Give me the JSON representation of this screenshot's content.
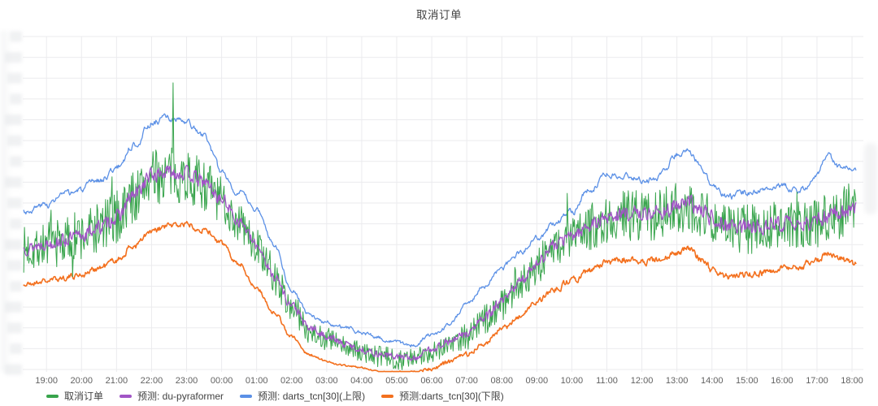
{
  "header": {
    "title": "取消订单"
  },
  "chart_data": {
    "type": "line",
    "title": "取消订单",
    "grid": true,
    "legend_position": "bottom-left",
    "x_axis": {
      "tick_labels": [
        "19:00",
        "20:00",
        "21:00",
        "22:00",
        "23:00",
        "00:00",
        "01:00",
        "02:00",
        "03:00",
        "04:00",
        "05:00",
        "06:00",
        "07:00",
        "08:00",
        "09:00",
        "10:00",
        "11:00",
        "12:00",
        "13:00",
        "14:00",
        "15:00",
        "16:00",
        "17:00",
        "18:00"
      ],
      "unit": "time of day (hourly ticks, 19:00 through next-day 18:00)",
      "data_range_hour_decimal": [
        18.35,
        42.11
      ]
    },
    "y_axis": {
      "redacted": true,
      "note": "y tick labels are blurred out in the source screenshot",
      "value_range": [
        0,
        100
      ],
      "redacted_label_rows": 17
    },
    "series": [
      {
        "name": "预测: darts_tcn[30](上限)",
        "color": "#5b90e6",
        "width": 1.3,
        "seed": 3,
        "smooth": 0.72,
        "noise_gain": 2.2,
        "noise_amp": [
          [
            18.35,
            1.1
          ],
          [
            22,
            1.3
          ],
          [
            27,
            0.8
          ],
          [
            30,
            0.8
          ],
          [
            35,
            1.2
          ],
          [
            42.11,
            1.2
          ]
        ],
        "keyframes": [
          [
            18.35,
            47.5
          ],
          [
            19,
            49.5
          ],
          [
            19.5,
            52.4
          ],
          [
            20,
            53.9
          ],
          [
            20.5,
            56.8
          ],
          [
            21,
            60.5
          ],
          [
            21.5,
            67.6
          ],
          [
            22,
            73.9
          ],
          [
            22.3,
            75.4
          ],
          [
            22.7,
            74.9
          ],
          [
            23,
            73.9
          ],
          [
            23.5,
            70
          ],
          [
            24,
            59.3
          ],
          [
            24.5,
            52.9
          ],
          [
            25,
            48
          ],
          [
            25.5,
            37.8
          ],
          [
            26,
            24.4
          ],
          [
            26.5,
            16.3
          ],
          [
            27,
            14.1
          ],
          [
            27.5,
            12.7
          ],
          [
            28,
            11
          ],
          [
            28.5,
            9.5
          ],
          [
            29,
            8
          ],
          [
            29.5,
            7.3
          ],
          [
            30,
            10.2
          ],
          [
            30.5,
            13.4
          ],
          [
            31,
            19.8
          ],
          [
            31.5,
            25.1
          ],
          [
            32,
            30.5
          ],
          [
            32.5,
            34.9
          ],
          [
            33,
            39.3
          ],
          [
            33.5,
            43.7
          ],
          [
            34,
            47.1
          ],
          [
            34.5,
            53.7
          ],
          [
            35,
            59.3
          ],
          [
            35.5,
            58.5
          ],
          [
            36,
            56.8
          ],
          [
            36.5,
            57.8
          ],
          [
            37,
            64.6
          ],
          [
            37.3,
            65.6
          ],
          [
            37.8,
            59.3
          ],
          [
            38,
            54.4
          ],
          [
            38.5,
            51.5
          ],
          [
            39,
            53.4
          ],
          [
            39.5,
            54.4
          ],
          [
            40,
            55.1
          ],
          [
            40.5,
            53.9
          ],
          [
            41,
            58.3
          ],
          [
            41.3,
            64.1
          ],
          [
            41.6,
            60.7
          ],
          [
            41.9,
            61.2
          ],
          [
            42.11,
            59.3
          ]
        ]
      },
      {
        "name": "预测:darts_tcn[30](下限)",
        "color": "#f3701e",
        "width": 1.6,
        "seed": 21,
        "smooth": 0.55,
        "noise_gain": 1.8,
        "noise_amp": [
          [
            18.35,
            0.8
          ],
          [
            22,
            1
          ],
          [
            28.5,
            0.25
          ],
          [
            31,
            0.8
          ],
          [
            35,
            1
          ],
          [
            42.11,
            1
          ]
        ],
        "keyframes": [
          [
            18.35,
            25.4
          ],
          [
            19,
            26.6
          ],
          [
            19.5,
            27.6
          ],
          [
            20,
            28.5
          ],
          [
            20.5,
            30.5
          ],
          [
            21,
            32.9
          ],
          [
            21.5,
            37.1
          ],
          [
            22,
            41.2
          ],
          [
            22.5,
            43.2
          ],
          [
            23,
            43.7
          ],
          [
            23.5,
            42
          ],
          [
            24,
            37.8
          ],
          [
            24.5,
            31.7
          ],
          [
            25,
            24.4
          ],
          [
            25.5,
            17.1
          ],
          [
            26,
            9.8
          ],
          [
            26.5,
            4.4
          ],
          [
            27,
            2.4
          ],
          [
            27.5,
            1.2
          ],
          [
            28,
            0.5
          ],
          [
            28.5,
            -0.6
          ],
          [
            29,
            -0.8
          ],
          [
            29.5,
            -0.8
          ],
          [
            30,
            0.2
          ],
          [
            30.5,
            2.2
          ],
          [
            31,
            4.6
          ],
          [
            31.5,
            8
          ],
          [
            32,
            12
          ],
          [
            32.5,
            15.9
          ],
          [
            33,
            20.2
          ],
          [
            33.5,
            24.1
          ],
          [
            34,
            26.6
          ],
          [
            34.5,
            29.5
          ],
          [
            35,
            32.2
          ],
          [
            35.5,
            32.9
          ],
          [
            36,
            32.4
          ],
          [
            36.5,
            32.9
          ],
          [
            37,
            34.9
          ],
          [
            37.3,
            36.1
          ],
          [
            37.8,
            32.4
          ],
          [
            38,
            29.5
          ],
          [
            38.5,
            27.8
          ],
          [
            39,
            28.5
          ],
          [
            39.5,
            29
          ],
          [
            40,
            30.2
          ],
          [
            40.5,
            31
          ],
          [
            41,
            32.9
          ],
          [
            41.3,
            35.1
          ],
          [
            41.6,
            33.4
          ],
          [
            42.11,
            31.5
          ]
        ]
      },
      {
        "name": "取消订单",
        "color": "#38a44c",
        "width": 1,
        "seed": 7,
        "smooth": 0,
        "noise_gain": 1,
        "spike_chance": 0.015,
        "spike_gain": 2.2,
        "spikes": [
          [
            22.62,
            86.1
          ]
        ],
        "noise_amp": [
          [
            18.35,
            7
          ],
          [
            21,
            8.5
          ],
          [
            23.5,
            8
          ],
          [
            25,
            5.5
          ],
          [
            26.5,
            4
          ],
          [
            28,
            3.2
          ],
          [
            30,
            3.4
          ],
          [
            31.5,
            4.5
          ],
          [
            33,
            6
          ],
          [
            35,
            7.5
          ],
          [
            37,
            8
          ],
          [
            39,
            7.5
          ],
          [
            41,
            7.5
          ],
          [
            42.11,
            8
          ]
        ],
        "keyframes": [
          [
            18.35,
            36
          ],
          [
            19,
            37.5
          ],
          [
            19.5,
            38.5
          ],
          [
            20,
            40
          ],
          [
            20.5,
            42.5
          ],
          [
            21,
            45.5
          ],
          [
            21.5,
            52
          ],
          [
            22,
            57.5
          ],
          [
            22.5,
            58.5
          ],
          [
            23,
            58
          ],
          [
            23.5,
            55.5
          ],
          [
            24,
            50.5
          ],
          [
            24.5,
            44
          ],
          [
            25,
            37
          ],
          [
            25.5,
            27.5
          ],
          [
            26,
            18.8
          ],
          [
            26.5,
            11.8
          ],
          [
            27,
            9.3
          ],
          [
            27.5,
            6.8
          ],
          [
            28,
            5.1
          ],
          [
            28.5,
            3.9
          ],
          [
            29,
            3.2
          ],
          [
            29.5,
            2.9
          ],
          [
            30,
            5.6
          ],
          [
            30.5,
            7.8
          ],
          [
            31,
            10.2
          ],
          [
            31.5,
            14.9
          ],
          [
            32,
            19.8
          ],
          [
            32.5,
            25.6
          ],
          [
            33,
            31.5
          ],
          [
            33.5,
            36.8
          ],
          [
            34,
            39.8
          ],
          [
            34.5,
            42.7
          ],
          [
            35,
            45.1
          ],
          [
            35.5,
            46.3
          ],
          [
            36,
            46.3
          ],
          [
            36.5,
            46.6
          ],
          [
            37,
            48.5
          ],
          [
            37.3,
            49.5
          ],
          [
            37.8,
            46.6
          ],
          [
            38,
            45.1
          ],
          [
            38.5,
            42.9
          ],
          [
            39,
            42.2
          ],
          [
            39.5,
            42.7
          ],
          [
            40,
            43.4
          ],
          [
            40.5,
            42.9
          ],
          [
            41,
            44.1
          ],
          [
            41.5,
            46.6
          ],
          [
            42.11,
            49.8
          ]
        ]
      },
      {
        "name": "预测: du-pyraformer",
        "color": "#a155c6",
        "width": 1.3,
        "seed": 13,
        "smooth": 0.3,
        "noise_gain": 1.5,
        "noise_amp": [
          [
            18.35,
            1.6
          ],
          [
            22,
            2
          ],
          [
            26,
            1.2
          ],
          [
            29,
            0.8
          ],
          [
            33,
            1.5
          ],
          [
            37,
            2
          ],
          [
            42.11,
            2
          ]
        ],
        "keyframes": [
          [
            18.35,
            36.3
          ],
          [
            19,
            37.8
          ],
          [
            19.5,
            38.8
          ],
          [
            20,
            40.2
          ],
          [
            20.5,
            42.7
          ],
          [
            21,
            45.6
          ],
          [
            21.5,
            52.4
          ],
          [
            22,
            58.3
          ],
          [
            22.5,
            59.3
          ],
          [
            23,
            58.8
          ],
          [
            23.5,
            56.3
          ],
          [
            24,
            51
          ],
          [
            24.5,
            44.6
          ],
          [
            25,
            37.3
          ],
          [
            25.5,
            28
          ],
          [
            26,
            19.3
          ],
          [
            26.5,
            12.4
          ],
          [
            27,
            10
          ],
          [
            27.5,
            7.6
          ],
          [
            28,
            5.9
          ],
          [
            28.5,
            4.6
          ],
          [
            29,
            3.9
          ],
          [
            29.5,
            3.4
          ],
          [
            30,
            6.3
          ],
          [
            30.5,
            8.3
          ],
          [
            31,
            10.7
          ],
          [
            31.5,
            15.4
          ],
          [
            32,
            20.2
          ],
          [
            32.5,
            26.1
          ],
          [
            33,
            32
          ],
          [
            33.5,
            37.3
          ],
          [
            34,
            40.2
          ],
          [
            34.5,
            43.2
          ],
          [
            35,
            45.6
          ],
          [
            35.5,
            46.8
          ],
          [
            36,
            46.8
          ],
          [
            36.5,
            47.1
          ],
          [
            37,
            49
          ],
          [
            37.3,
            50
          ],
          [
            37.8,
            47.1
          ],
          [
            38,
            45.6
          ],
          [
            38.5,
            43.4
          ],
          [
            39,
            42.7
          ],
          [
            39.5,
            43.2
          ],
          [
            40,
            43.9
          ],
          [
            40.5,
            43.4
          ],
          [
            41,
            44.6
          ],
          [
            41.5,
            47.1
          ],
          [
            42.11,
            48.8
          ]
        ]
      }
    ]
  },
  "legend": {
    "items": [
      {
        "label": "取消订单",
        "color": "#38a44c"
      },
      {
        "label": "预测: du-pyraformer",
        "color": "#a155c6"
      },
      {
        "label": "预测: darts_tcn[30](上限)",
        "color": "#5b90e6"
      },
      {
        "label": "预测:darts_tcn[30](下限)",
        "color": "#f3701e"
      }
    ]
  }
}
